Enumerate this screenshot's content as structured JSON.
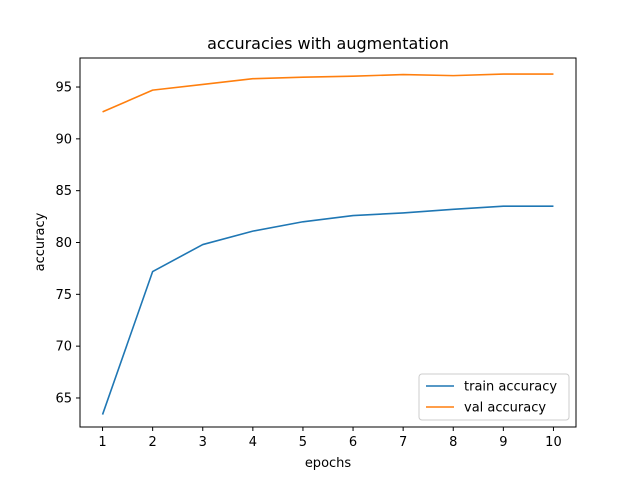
{
  "chart_data": {
    "type": "line",
    "title": "accuracies with augmentation",
    "xlabel": "epochs",
    "ylabel": "accuracy",
    "x": [
      1,
      2,
      3,
      4,
      5,
      6,
      7,
      8,
      9,
      10
    ],
    "xticks": [
      1,
      2,
      3,
      4,
      5,
      6,
      7,
      8,
      9,
      10
    ],
    "yticks": [
      65,
      70,
      75,
      80,
      85,
      90,
      95
    ],
    "xlim": [
      0.55,
      10.45
    ],
    "ylim": [
      62.2,
      97.8
    ],
    "grid": false,
    "legend_position": "lower-right",
    "series": [
      {
        "name": "train accuracy",
        "color": "#1f77b4",
        "values": [
          63.4,
          77.2,
          79.8,
          81.1,
          82.0,
          82.6,
          82.85,
          83.2,
          83.5,
          83.5
        ]
      },
      {
        "name": "val accuracy",
        "color": "#ff7f0e",
        "values": [
          92.6,
          94.7,
          95.25,
          95.8,
          95.95,
          96.05,
          96.2,
          96.1,
          96.25,
          96.25
        ]
      }
    ]
  }
}
